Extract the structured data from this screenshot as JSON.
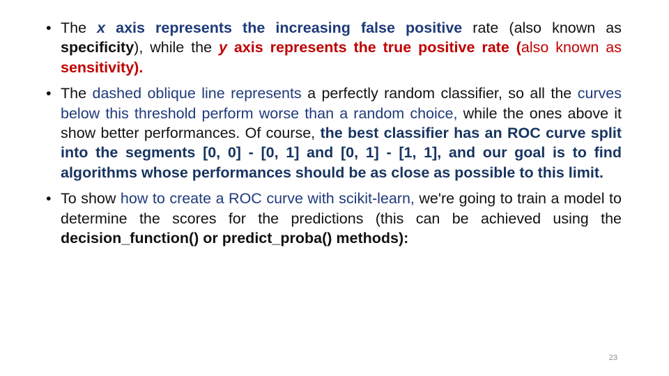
{
  "bullets": [
    {
      "marker": "•",
      "runs": [
        {
          "text": "The ",
          "style": "dark"
        },
        {
          "text": "x",
          "style": "blue b i"
        },
        {
          "text": " axis represents the increasing false positive",
          "style": "blue b"
        },
        {
          "text": " rate (also known as ",
          "style": "dark"
        },
        {
          "text": "specificity",
          "style": "dark b"
        },
        {
          "text": "), while the ",
          "style": "dark"
        },
        {
          "text": "y",
          "style": "red b i"
        },
        {
          "text": " axis represents the true positive rate (",
          "style": "red b"
        },
        {
          "text": "also known as ",
          "style": "red"
        },
        {
          "text": "sensitivity).",
          "style": "red b"
        }
      ]
    },
    {
      "marker": "•",
      "runs": [
        {
          "text": "The ",
          "style": "dark"
        },
        {
          "text": "dashed oblique line represents",
          "style": "blue"
        },
        {
          "text": " a perfectly random classifier, so all the ",
          "style": "dark"
        },
        {
          "text": "curves below this threshold perform worse than a random choice,",
          "style": "blue"
        },
        {
          "text": " while the ones above it show better performances. Of course, ",
          "style": "dark"
        },
        {
          "text": "the best classifier has an ROC curve split into the segments [0, 0] - [0, 1] and [0, 1] - [1, 1], and our goal is to find algorithms whose performances should be as close as possible to this limit.",
          "style": "navy b"
        }
      ]
    },
    {
      "marker": "•",
      "runs": [
        {
          "text": "To show ",
          "style": "dark"
        },
        {
          "text": "how to create a ROC curve with scikit-learn,",
          "style": "blue"
        },
        {
          "text": " we're going to train a model to determine the scores for the predictions (this can be achieved using the ",
          "style": "dark"
        },
        {
          "text": "decision_function() or predict_proba() methods):",
          "style": "dark b"
        }
      ]
    }
  ],
  "page_number": "23"
}
